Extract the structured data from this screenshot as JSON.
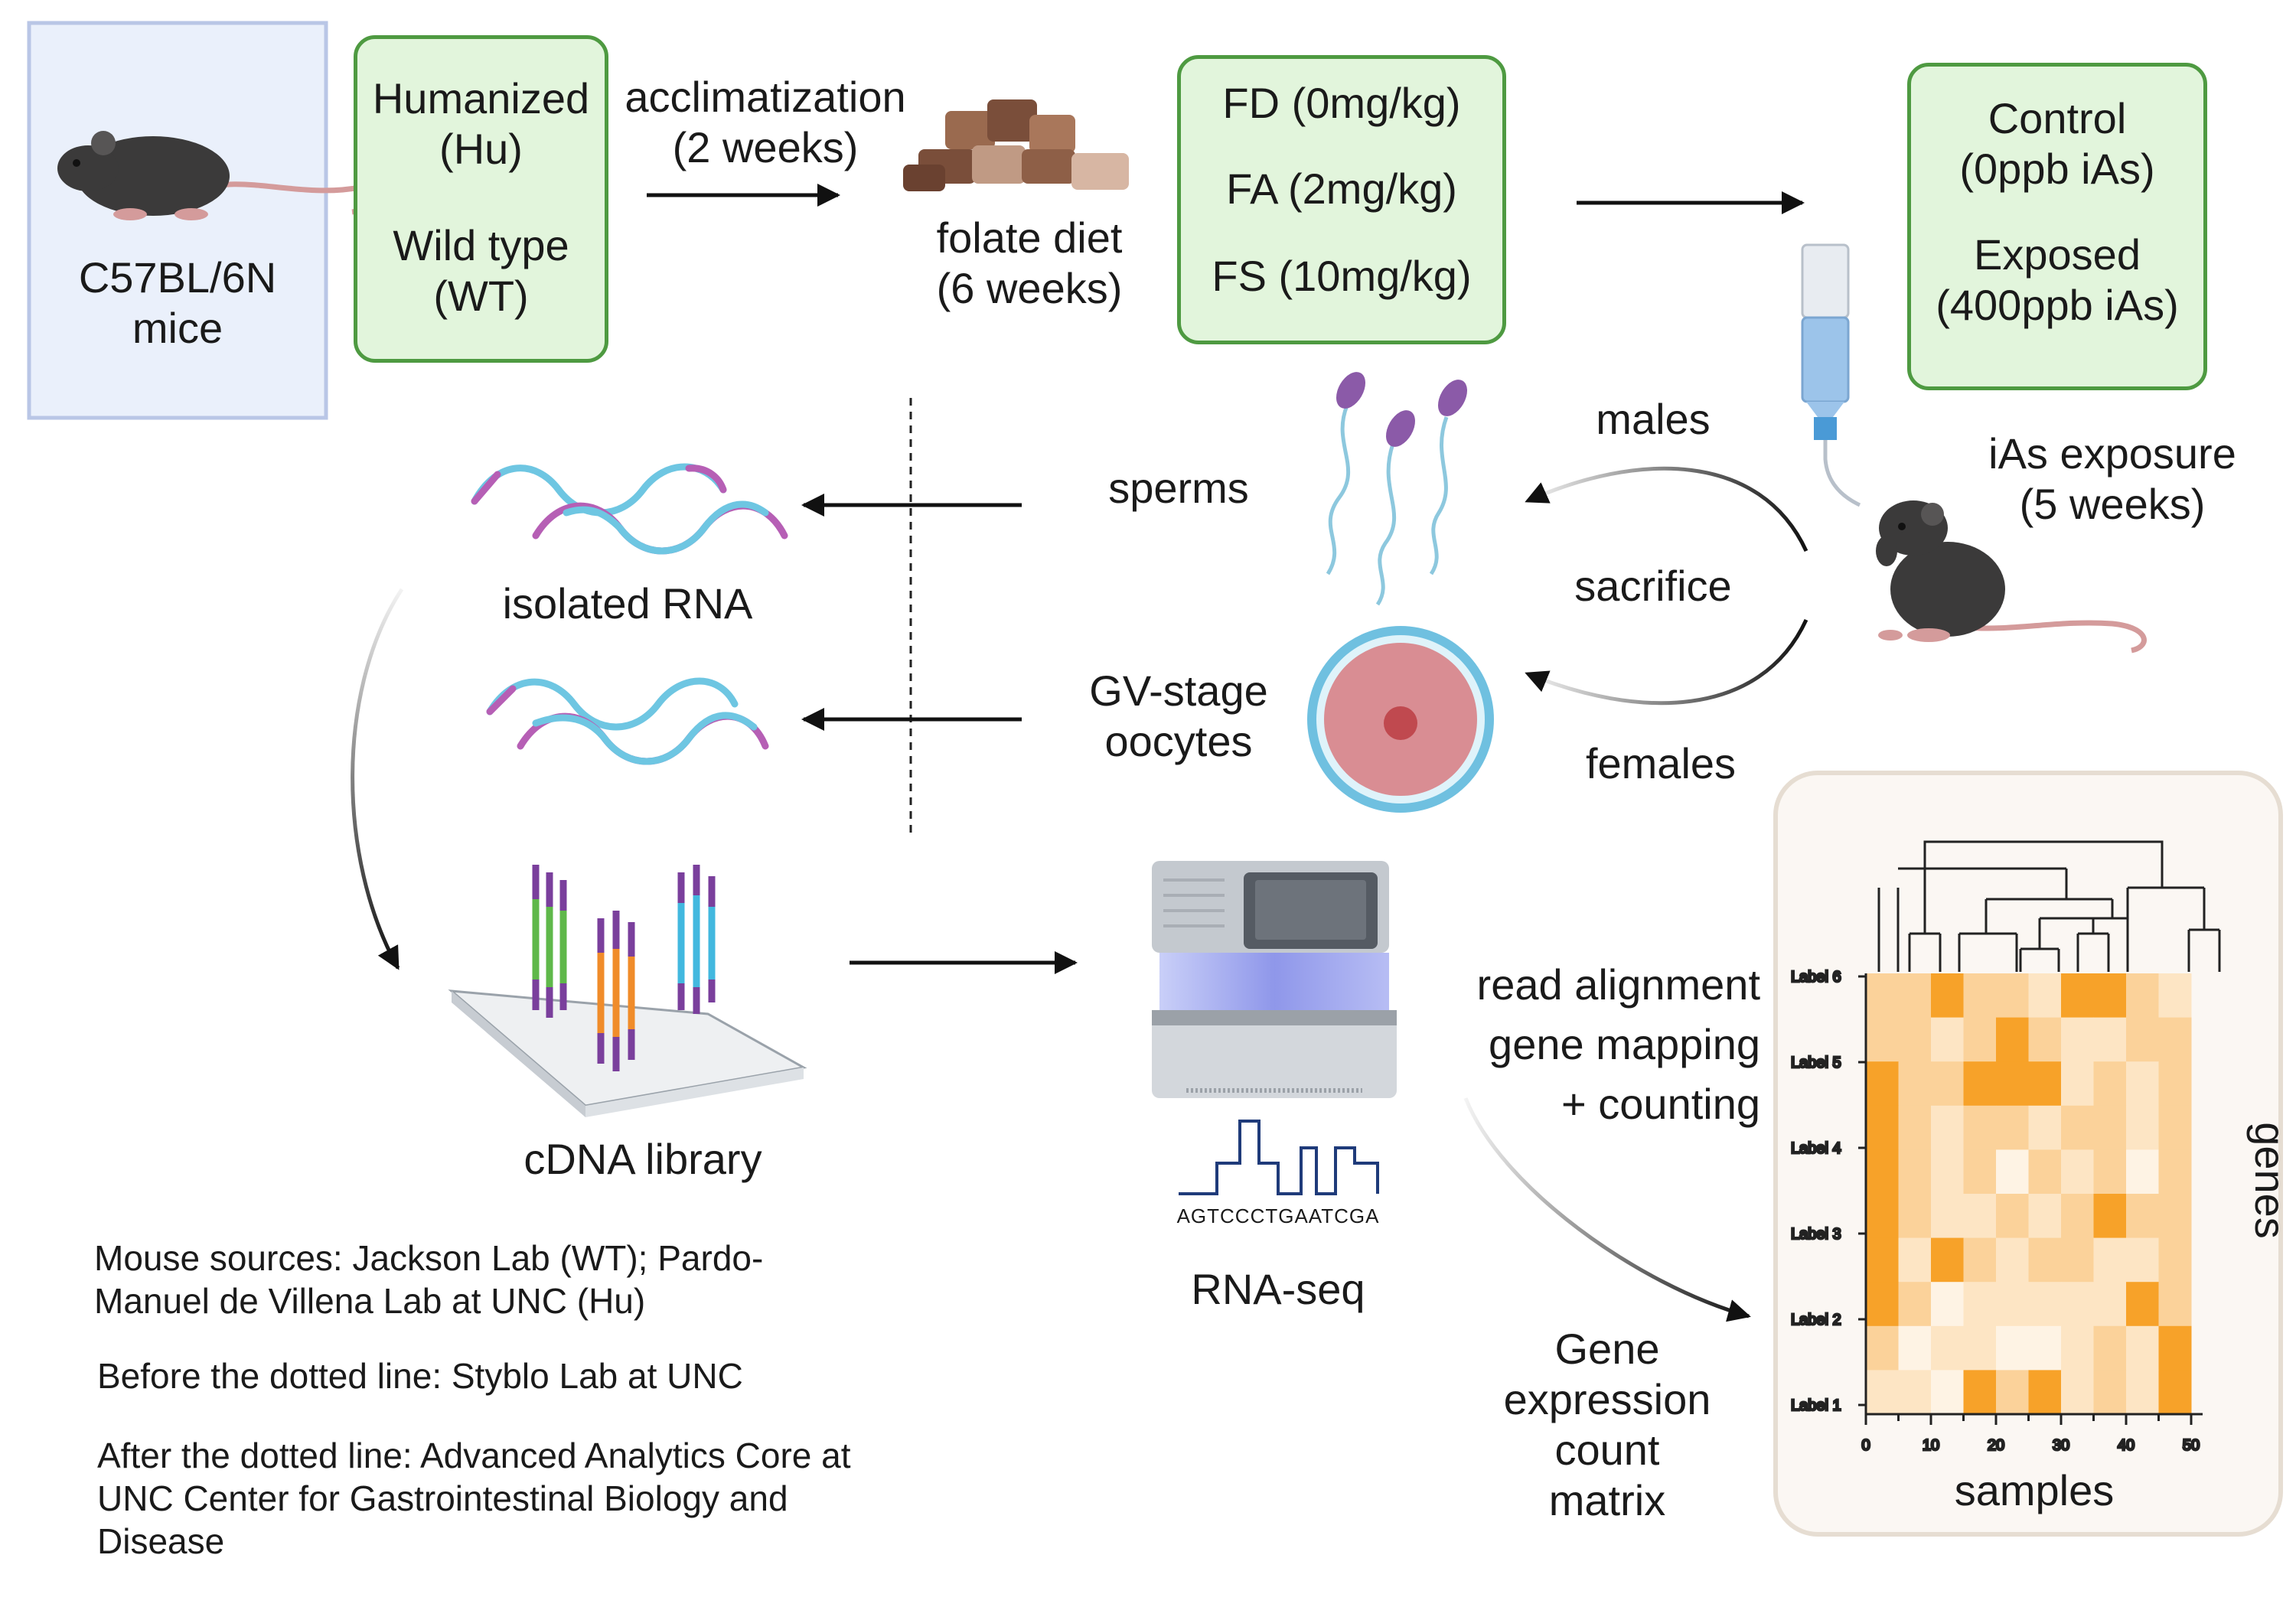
{
  "mice": {
    "line1": "C57BL/6N",
    "line2": "mice"
  },
  "genotypes": {
    "hu_line1": "Humanized",
    "hu_line2": "(Hu)",
    "wt_line1": "Wild type",
    "wt_line2": "(WT)"
  },
  "acclimatization": {
    "line1": "acclimatization",
    "line2": "(2 weeks)"
  },
  "folate_diet": {
    "line1": "folate diet",
    "line2": "(6 weeks)"
  },
  "diets": [
    "FD (0mg/kg)",
    "FA (2mg/kg)",
    "FS (10mg/kg)"
  ],
  "exposure_groups": {
    "control_line1": "Control",
    "control_line2": "(0ppb iAs)",
    "exposed_line1": "Exposed",
    "exposed_line2": "(400ppb iAs)"
  },
  "ias_exposure": {
    "line1": "iAs exposure",
    "line2": "(5 weeks)"
  },
  "sacrifice": {
    "males": "males",
    "sacrifice": "sacrifice",
    "females": "females"
  },
  "cells": {
    "sperms": "sperms",
    "oocytes_line1": "GV-stage",
    "oocytes_line2": "oocytes"
  },
  "isolated_rna": "isolated RNA",
  "cdna_library": "cDNA library",
  "sequencer": {
    "sequence": "AGTCCCTGAATCGA",
    "label": "RNA-seq"
  },
  "processing": {
    "line1": "read alignment",
    "line2": "gene mapping",
    "line3": "+ counting"
  },
  "output": {
    "line1": "Gene",
    "line2": "expression",
    "line3": "count",
    "line4": "matrix"
  },
  "heatmap": {
    "row_labels": [
      "Label 6",
      "Label 5",
      "Label 4",
      "Label 3",
      "Label 2",
      "Label 1"
    ],
    "x_ticks": [
      "0",
      "10",
      "20",
      "30",
      "40",
      "50"
    ],
    "xlabel": "samples",
    "ylabel": "genes"
  },
  "notes": {
    "sources_line1": "Mouse sources: Jackson Lab (WT); Pardo-",
    "sources_line2": "Manuel de Villena Lab at UNC (Hu)",
    "before": "Before the dotted line: Styblo Lab at UNC",
    "after_line1": "After the dotted line: Advanced Analytics Core at",
    "after_line2": "UNC Center for Gastrointestinal Biology and",
    "after_line3": "Disease"
  },
  "colors": {
    "box_fill": "#e2f5dc",
    "box_border": "#4e9a41",
    "heat_dark": "#f7a229",
    "heat_light": "#fef3e4"
  }
}
